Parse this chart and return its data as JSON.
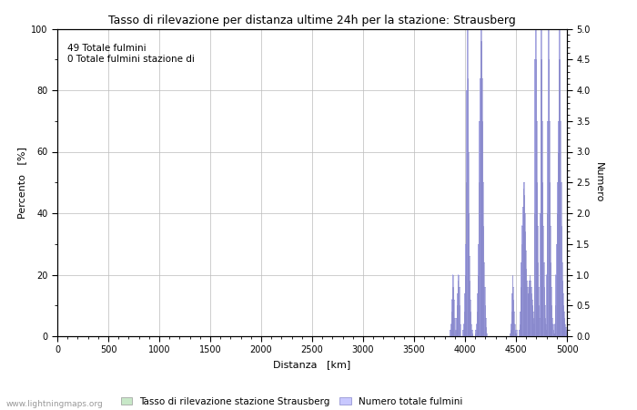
{
  "title": "Tasso di rilevazione per distanza ultime 24h per la stazione: Strausberg",
  "xlabel": "Distanza   [km]",
  "ylabel_left": "Percento   [%]",
  "ylabel_right": "Numero",
  "annotation_line1": "49 Totale fulmini",
  "annotation_line2": "0 Totale fulmini stazione di",
  "xlim": [
    0,
    5000
  ],
  "ylim_left": [
    0,
    100
  ],
  "ylim_right": [
    0,
    5.0
  ],
  "xticks": [
    0,
    500,
    1000,
    1500,
    2000,
    2500,
    3000,
    3500,
    4000,
    4500,
    5000
  ],
  "yticks_left": [
    0,
    20,
    40,
    60,
    80,
    100
  ],
  "yticks_right": [
    0.0,
    0.5,
    1.0,
    1.5,
    2.0,
    2.5,
    3.0,
    3.5,
    4.0,
    4.5,
    5.0
  ],
  "legend_label_green": "Tasso di rilevazione stazione Strausberg",
  "legend_label_blue": "Numero totale fulmini",
  "watermark": "www.lightningmaps.org",
  "bar_color": "#c8c8ff",
  "bar_edge_color": "#8888cc",
  "green_color": "#c8e8c8",
  "background_color": "#ffffff",
  "grid_color": "#bbbbbb",
  "bar_data_x": [
    3855,
    3860,
    3865,
    3870,
    3875,
    3880,
    3885,
    3890,
    3895,
    3900,
    3910,
    3915,
    3920,
    3925,
    3930,
    3935,
    3940,
    3945,
    3950,
    3980,
    3985,
    3990,
    3995,
    4000,
    4005,
    4010,
    4015,
    4020,
    4025,
    4030,
    4035,
    4040,
    4045,
    4050,
    4055,
    4060,
    4065,
    4070,
    4100,
    4105,
    4110,
    4115,
    4120,
    4125,
    4130,
    4135,
    4140,
    4145,
    4150,
    4155,
    4160,
    4165,
    4170,
    4175,
    4180,
    4185,
    4190,
    4195,
    4200,
    4205,
    4210,
    4440,
    4445,
    4450,
    4455,
    4460,
    4465,
    4470,
    4475,
    4480,
    4485,
    4490,
    4495,
    4500,
    4505,
    4530,
    4535,
    4540,
    4545,
    4550,
    4555,
    4560,
    4565,
    4570,
    4575,
    4580,
    4585,
    4590,
    4595,
    4600,
    4605,
    4610,
    4615,
    4620,
    4625,
    4630,
    4635,
    4640,
    4645,
    4650,
    4655,
    4660,
    4665,
    4670,
    4675,
    4680,
    4685,
    4690,
    4695,
    4700,
    4705,
    4710,
    4715,
    4720,
    4725,
    4730,
    4735,
    4740,
    4745,
    4750,
    4755,
    4760,
    4765,
    4770,
    4775,
    4780,
    4785,
    4790,
    4795,
    4800,
    4805,
    4810,
    4815,
    4820,
    4825,
    4830,
    4835,
    4840,
    4845,
    4850,
    4855,
    4860,
    4865,
    4870,
    4875,
    4880,
    4885,
    4890,
    4895,
    4900,
    4905,
    4910,
    4915,
    4920,
    4925,
    4930,
    4935,
    4940,
    4945,
    4950,
    4955,
    4960,
    4965,
    4970,
    4975,
    4980,
    4985,
    4990,
    4995,
    5000
  ],
  "bar_data_y": [
    0.1,
    0.2,
    0.4,
    0.6,
    0.8,
    1.0,
    0.8,
    0.6,
    0.3,
    0.1,
    0.1,
    0.3,
    0.5,
    0.7,
    0.9,
    1.0,
    0.8,
    0.5,
    0.2,
    0.1,
    0.2,
    0.4,
    0.7,
    1.0,
    1.5,
    2.5,
    4.0,
    5.0,
    4.2,
    3.0,
    2.0,
    1.3,
    0.9,
    0.6,
    0.4,
    0.2,
    0.1,
    0.05,
    0.05,
    0.1,
    0.2,
    0.4,
    0.7,
    1.0,
    1.5,
    2.5,
    3.5,
    4.2,
    4.8,
    5.0,
    4.8,
    4.2,
    3.5,
    2.5,
    1.8,
    1.2,
    0.8,
    0.5,
    0.3,
    0.15,
    0.05,
    0.05,
    0.1,
    0.2,
    0.4,
    0.7,
    1.0,
    0.8,
    0.6,
    0.4,
    0.2,
    0.1,
    0.05,
    0.05,
    0.1,
    0.1,
    0.2,
    0.4,
    0.8,
    1.2,
    1.5,
    1.8,
    2.1,
    2.4,
    2.5,
    2.3,
    2.0,
    1.7,
    1.4,
    1.1,
    0.9,
    0.8,
    0.7,
    0.7,
    0.8,
    0.9,
    1.0,
    0.9,
    0.8,
    0.7,
    0.6,
    0.5,
    0.4,
    0.3,
    0.2,
    2.0,
    4.5,
    5.0,
    4.5,
    3.5,
    2.5,
    1.8,
    1.2,
    0.8,
    0.5,
    0.3,
    2.0,
    4.5,
    5.0,
    4.5,
    3.5,
    2.5,
    1.8,
    1.2,
    0.8,
    0.5,
    0.3,
    0.2,
    0.1,
    1.0,
    2.0,
    3.5,
    5.0,
    4.5,
    3.5,
    2.5,
    1.8,
    1.2,
    0.8,
    0.5,
    0.3,
    0.2,
    0.1,
    0.05,
    0.05,
    0.2,
    0.5,
    1.0,
    1.5,
    2.0,
    2.5,
    3.0,
    3.5,
    4.5,
    5.0,
    4.5,
    3.5,
    2.5,
    1.8,
    1.2,
    0.9,
    0.7,
    0.5,
    0.4,
    0.3,
    0.2,
    0.15,
    0.1,
    0.05,
    0.05
  ]
}
